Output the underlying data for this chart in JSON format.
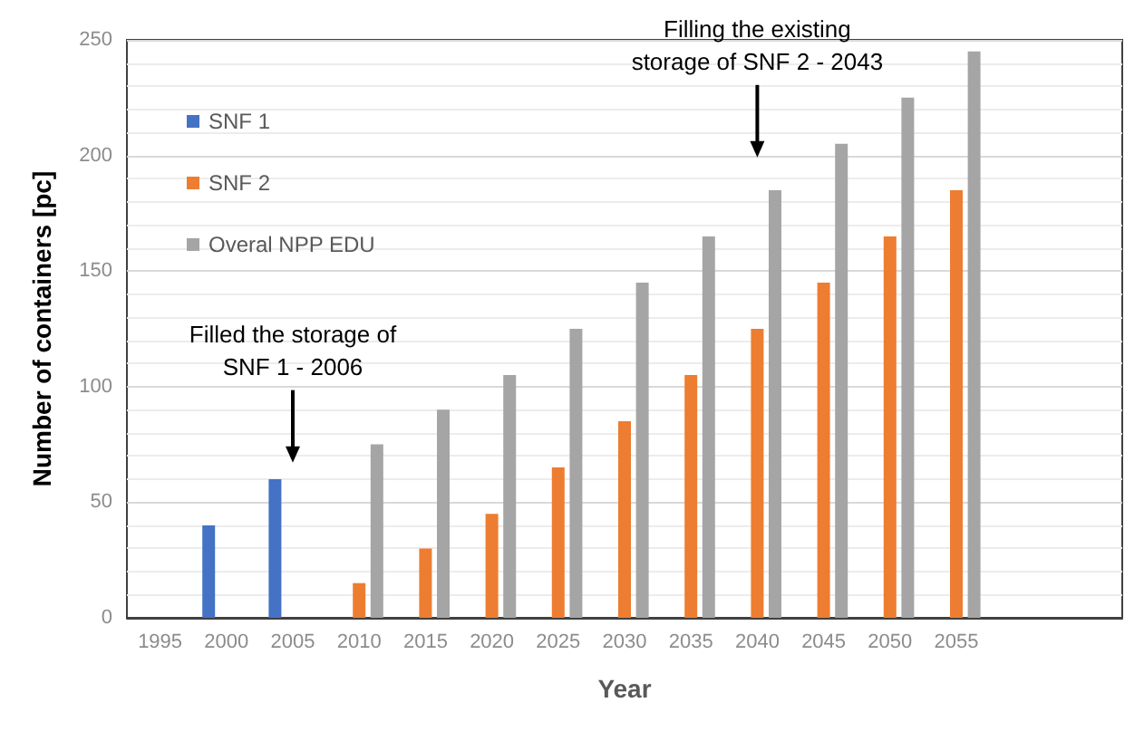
{
  "chart_data": {
    "type": "bar",
    "xlabel": "Year",
    "ylabel": "Number of containers [pc]",
    "categories": [
      "1995",
      "2000",
      "2005",
      "2010",
      "2015",
      "2020",
      "2025",
      "2030",
      "2035",
      "2040",
      "2045",
      "2050",
      "2055",
      null,
      null
    ],
    "series": [
      {
        "name": "SNF 1",
        "color": "#4472c4",
        "values": [
          null,
          40,
          60,
          null,
          null,
          null,
          null,
          null,
          null,
          null,
          null,
          null,
          null,
          null,
          null
        ]
      },
      {
        "name": "SNF 2",
        "color": "#ed7d31",
        "values": [
          null,
          null,
          null,
          15,
          30,
          45,
          65,
          85,
          105,
          125,
          145,
          165,
          185,
          null,
          null
        ]
      },
      {
        "name": "Overal NPP EDU",
        "color": "#a5a5a5",
        "values": [
          null,
          null,
          null,
          75,
          90,
          105,
          125,
          145,
          165,
          185,
          205,
          225,
          245,
          null,
          null
        ]
      }
    ],
    "ylim": [
      0,
      250
    ],
    "yticks": [
      0,
      50,
      100,
      150,
      200,
      250
    ],
    "grid": "y",
    "legend": "top left",
    "annotations": [
      "Filled the storage of\nSNF 1 - 2006",
      "Filling the existing\nstorage of SNF 2 - 2043"
    ]
  }
}
